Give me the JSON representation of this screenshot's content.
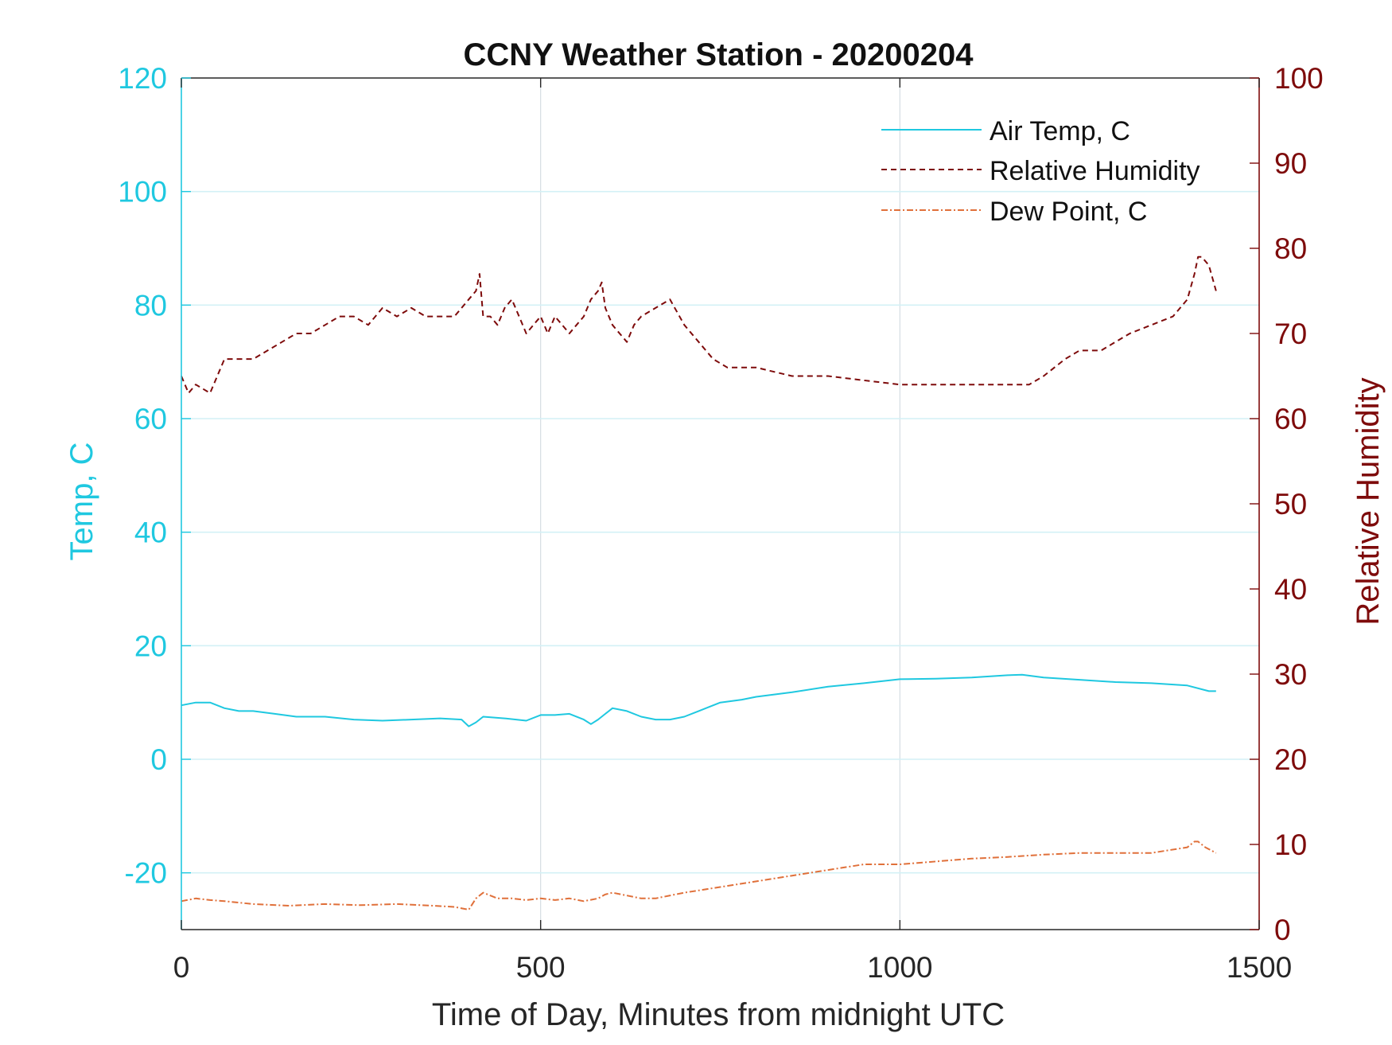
{
  "chart_data": {
    "type": "line",
    "title": "CCNY Weather Station - 20200204",
    "xlabel": "Time of Day, Minutes from midnight UTC",
    "ylabel_left": "Temp, C",
    "ylabel_right": "Relative Humidity",
    "xlim": [
      0,
      1500
    ],
    "ylim_left": [
      -30,
      120
    ],
    "ylim_right": [
      0,
      100
    ],
    "xticks": [
      "0",
      "500",
      "1000",
      "1500"
    ],
    "yticks_left": [
      "-20",
      "0",
      "20",
      "40",
      "60",
      "80",
      "100",
      "120"
    ],
    "yticks_right": [
      "0",
      "10",
      "20",
      "30",
      "40",
      "50",
      "60",
      "70",
      "80",
      "90",
      "100"
    ],
    "grid": true,
    "legend_position": "top-right",
    "colors": {
      "temp": "#1fc8e0",
      "humidity": "#7e0b0b",
      "dew": "#e0703a"
    },
    "series": [
      {
        "name": "Air Temp, C",
        "axis": "left",
        "style": "solid",
        "x": [
          0,
          20,
          40,
          60,
          80,
          100,
          130,
          160,
          200,
          240,
          280,
          320,
          360,
          390,
          400,
          410,
          420,
          450,
          480,
          500,
          520,
          540,
          560,
          570,
          580,
          590,
          600,
          620,
          640,
          660,
          680,
          700,
          720,
          750,
          780,
          800,
          850,
          900,
          950,
          1000,
          1050,
          1100,
          1150,
          1170,
          1200,
          1250,
          1300,
          1350,
          1400,
          1430,
          1440
        ],
        "y": [
          9.5,
          10,
          10,
          9,
          8.5,
          8.5,
          8,
          7.5,
          7.5,
          7,
          6.8,
          7,
          7.2,
          7,
          5.8,
          6.5,
          7.5,
          7.2,
          6.8,
          7.8,
          7.8,
          8,
          7,
          6.2,
          7,
          8,
          9,
          8.5,
          7.5,
          7,
          7,
          7.5,
          8.5,
          10,
          10.5,
          11,
          11.8,
          12.8,
          13.4,
          14.1,
          14.2,
          14.4,
          14.8,
          14.9,
          14.4,
          14,
          13.6,
          13.4,
          13,
          12,
          12
        ]
      },
      {
        "name": "Relative Humidity",
        "axis": "right",
        "style": "dashed",
        "x": [
          0,
          10,
          20,
          40,
          60,
          80,
          100,
          120,
          140,
          160,
          180,
          200,
          220,
          240,
          260,
          280,
          300,
          320,
          340,
          360,
          380,
          400,
          410,
          415,
          420,
          430,
          440,
          450,
          460,
          470,
          480,
          490,
          500,
          510,
          520,
          530,
          540,
          550,
          560,
          570,
          580,
          585,
          590,
          600,
          610,
          620,
          630,
          640,
          660,
          680,
          700,
          720,
          740,
          760,
          780,
          800,
          850,
          900,
          950,
          1000,
          1050,
          1100,
          1150,
          1180,
          1200,
          1230,
          1250,
          1280,
          1300,
          1320,
          1350,
          1380,
          1400,
          1410,
          1415,
          1420,
          1430,
          1440
        ],
        "y": [
          65,
          63,
          64,
          63,
          67,
          67,
          67,
          68,
          69,
          70,
          70,
          71,
          72,
          72,
          71,
          73,
          72,
          73,
          72,
          72,
          72,
          74,
          75,
          77,
          72,
          72,
          71,
          73,
          74,
          72,
          70,
          71,
          72,
          70,
          72,
          71,
          70,
          71,
          72,
          74,
          75,
          76,
          73,
          71,
          70,
          69,
          71,
          72,
          73,
          74,
          71,
          69,
          67,
          66,
          66,
          66,
          65,
          65,
          64.5,
          64,
          64,
          64,
          64,
          64,
          65,
          67,
          68,
          68,
          69,
          70,
          71,
          72,
          74,
          77,
          79,
          79,
          78,
          75
        ]
      },
      {
        "name": "Dew Point, C",
        "axis": "left",
        "style": "dashdot",
        "x": [
          0,
          20,
          40,
          60,
          100,
          150,
          200,
          250,
          300,
          350,
          380,
          400,
          410,
          420,
          440,
          460,
          480,
          500,
          520,
          540,
          560,
          580,
          590,
          600,
          620,
          640,
          660,
          700,
          750,
          800,
          850,
          900,
          950,
          1000,
          1050,
          1100,
          1150,
          1200,
          1250,
          1300,
          1350,
          1400,
          1410,
          1415,
          1425,
          1440
        ],
        "y": [
          -25,
          -24.5,
          -24.8,
          -25,
          -25.5,
          -25.8,
          -25.5,
          -25.7,
          -25.5,
          -25.8,
          -26,
          -26.5,
          -24.5,
          -23.5,
          -24.5,
          -24.5,
          -24.8,
          -24.5,
          -24.8,
          -24.5,
          -25,
          -24.5,
          -23.8,
          -23.5,
          -24,
          -24.5,
          -24.5,
          -23.5,
          -22.5,
          -21.5,
          -20.5,
          -19.5,
          -18.5,
          -18.5,
          -18,
          -17.5,
          -17.2,
          -16.8,
          -16.5,
          -16.5,
          -16.5,
          -15.5,
          -14.5,
          -14.5,
          -15.5,
          -16.5
        ]
      }
    ]
  }
}
